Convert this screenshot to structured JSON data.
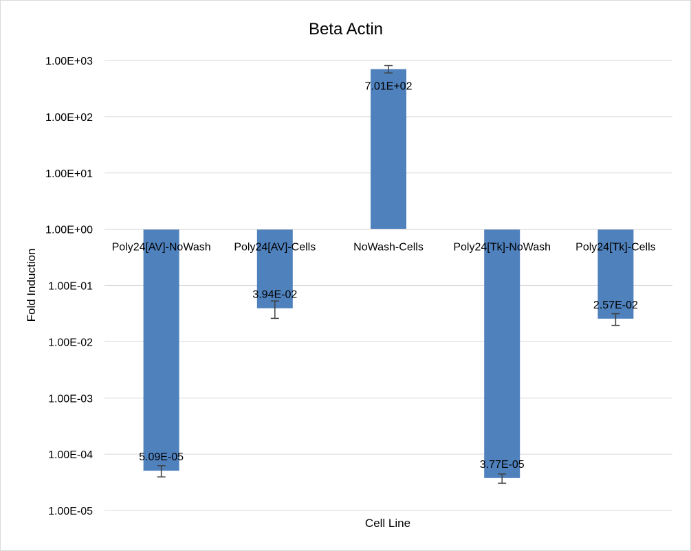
{
  "chart_data": {
    "type": "bar",
    "title": "Beta Actin",
    "xlabel": "Cell Line",
    "ylabel": "Fold Induction",
    "y_scale": "log",
    "ylim": [
      1e-05,
      1000
    ],
    "baseline": 1,
    "y_ticks": [
      1000,
      100,
      10,
      1,
      0.1,
      0.01,
      0.001,
      0.0001,
      1e-05
    ],
    "y_tick_labels": [
      "1.00E+03",
      "1.00E+02",
      "1.00E+01",
      "1.00E+00",
      "1.00E-01",
      "1.00E-02",
      "1.00E-03",
      "1.00E-04",
      "1.00E-05"
    ],
    "grid": true,
    "bar_color": "#4f81bd",
    "categories": [
      "Poly24[AV]-NoWash",
      "Poly24[AV]-Cells",
      "NoWash-Cells",
      "Poly24[Tk]-NoWash",
      "Poly24[Tk]-Cells"
    ],
    "values": [
      5.09e-05,
      0.0394,
      701,
      3.77e-05,
      0.0257
    ],
    "value_labels": [
      "5.09E-05",
      "3.94E-02",
      "7.01E+02",
      "3.77E-05",
      "2.57E-02"
    ],
    "error_low": [
      3.95e-05,
      0.026,
      600,
      3.05e-05,
      0.0195
    ],
    "error_high": [
      6.25e-05,
      0.053,
      810,
      4.45e-05,
      0.0315
    ]
  }
}
